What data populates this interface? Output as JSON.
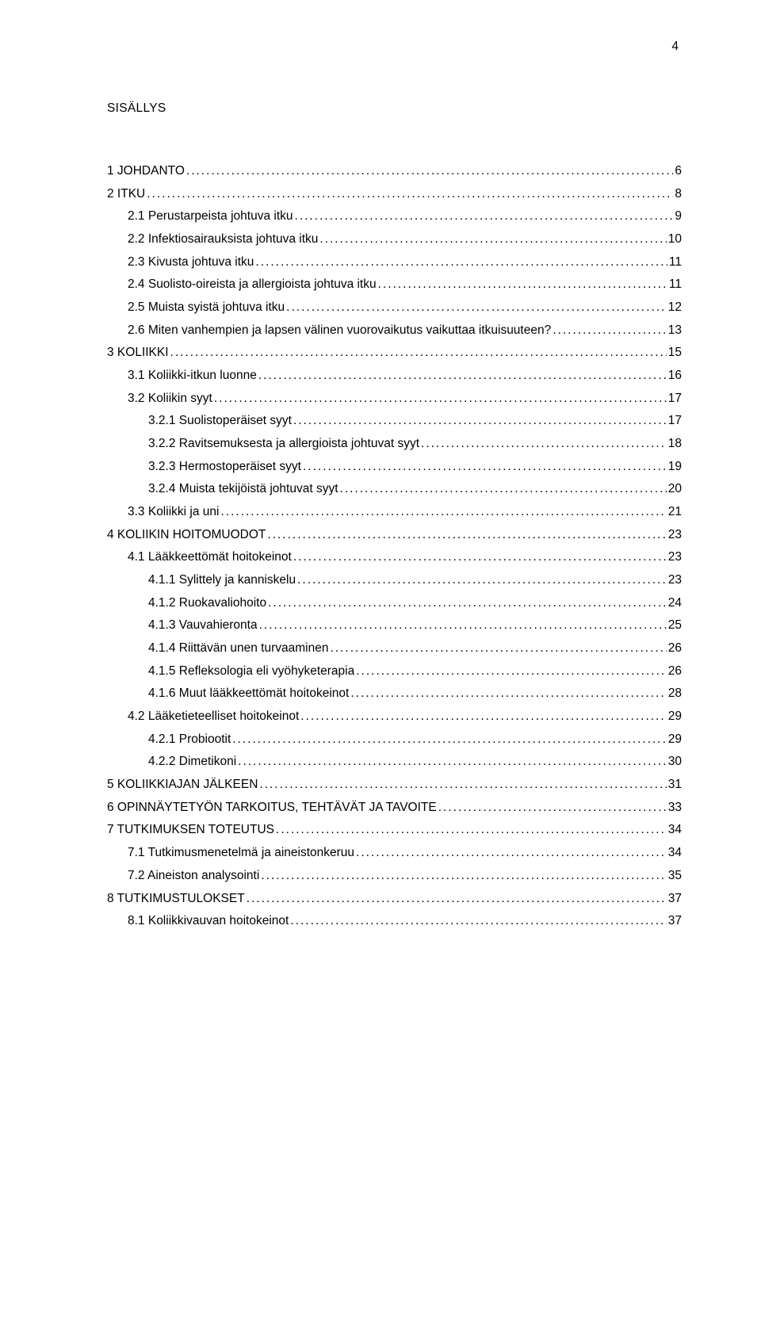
{
  "page_number": "4",
  "heading": "SISÄLLYS",
  "entries": [
    {
      "label": "1 JOHDANTO",
      "page": "6",
      "indent": 0
    },
    {
      "label": "2 ITKU",
      "page": "8",
      "indent": 0
    },
    {
      "label": "2.1 Perustarpeista johtuva itku",
      "page": "9",
      "indent": 1
    },
    {
      "label": "2.2 Infektiosairauksista johtuva itku",
      "page": "10",
      "indent": 1
    },
    {
      "label": "2.3 Kivusta johtuva itku",
      "page": "11",
      "indent": 1
    },
    {
      "label": "2.4 Suolisto-oireista ja allergioista johtuva itku",
      "page": "11",
      "indent": 1
    },
    {
      "label": "2.5 Muista syistä johtuva itku",
      "page": "12",
      "indent": 1
    },
    {
      "label": "2.6 Miten vanhempien ja lapsen välinen vuorovaikutus vaikuttaa itkuisuuteen?",
      "page": "13",
      "indent": 1
    },
    {
      "label": "3 KOLIIKKI",
      "page": "15",
      "indent": 0
    },
    {
      "label": "3.1 Koliikki-itkun luonne",
      "page": "16",
      "indent": 1
    },
    {
      "label": "3.2 Koliikin syyt",
      "page": "17",
      "indent": 1
    },
    {
      "label": "3.2.1 Suolistoperäiset syyt",
      "page": "17",
      "indent": 2
    },
    {
      "label": "3.2.2 Ravitsemuksesta ja allergioista johtuvat syyt",
      "page": "18",
      "indent": 2
    },
    {
      "label": "3.2.3 Hermostoperäiset syyt",
      "page": "19",
      "indent": 2
    },
    {
      "label": "3.2.4 Muista tekijöistä johtuvat syyt",
      "page": "20",
      "indent": 2
    },
    {
      "label": "3.3 Koliikki ja uni",
      "page": "21",
      "indent": 1
    },
    {
      "label": "4 KOLIIKIN HOITOMUODOT",
      "page": "23",
      "indent": 0
    },
    {
      "label": "4.1 Lääkkeettömät hoitokeinot",
      "page": "23",
      "indent": 1
    },
    {
      "label": "4.1.1 Sylittely ja kanniskelu",
      "page": "23",
      "indent": 2
    },
    {
      "label": "4.1.2 Ruokavaliohoito",
      "page": "24",
      "indent": 2
    },
    {
      "label": "4.1.3 Vauvahieronta",
      "page": "25",
      "indent": 2
    },
    {
      "label": "4.1.4 Riittävän unen turvaaminen",
      "page": "26",
      "indent": 2
    },
    {
      "label": "4.1.5 Refleksologia eli vyöhyketerapia",
      "page": "26",
      "indent": 2
    },
    {
      "label": "4.1.6 Muut lääkkeettömät hoitokeinot",
      "page": "28",
      "indent": 2
    },
    {
      "label": "4.2 Lääketieteelliset hoitokeinot",
      "page": "29",
      "indent": 1
    },
    {
      "label": "4.2.1 Probiootit",
      "page": "29",
      "indent": 2
    },
    {
      "label": "4.2.2 Dimetikoni",
      "page": "30",
      "indent": 2
    },
    {
      "label": "5 KOLIIKKIAJAN JÄLKEEN",
      "page": "31",
      "indent": 0
    },
    {
      "label": "6 OPINNÄYTETYÖN TARKOITUS, TEHTÄVÄT JA TAVOITE",
      "page": "33",
      "indent": 0
    },
    {
      "label": "7 TUTKIMUKSEN TOTEUTUS",
      "page": "34",
      "indent": 0
    },
    {
      "label": "7.1 Tutkimusmenetelmä ja aineistonkeruu",
      "page": "34",
      "indent": 1
    },
    {
      "label": "7.2 Aineiston analysointi",
      "page": "35",
      "indent": 1
    },
    {
      "label": "8 TUTKIMUSTULOKSET",
      "page": "37",
      "indent": 0
    },
    {
      "label": "8.1 Koliikkivauvan hoitokeinot",
      "page": "37",
      "indent": 1
    }
  ]
}
